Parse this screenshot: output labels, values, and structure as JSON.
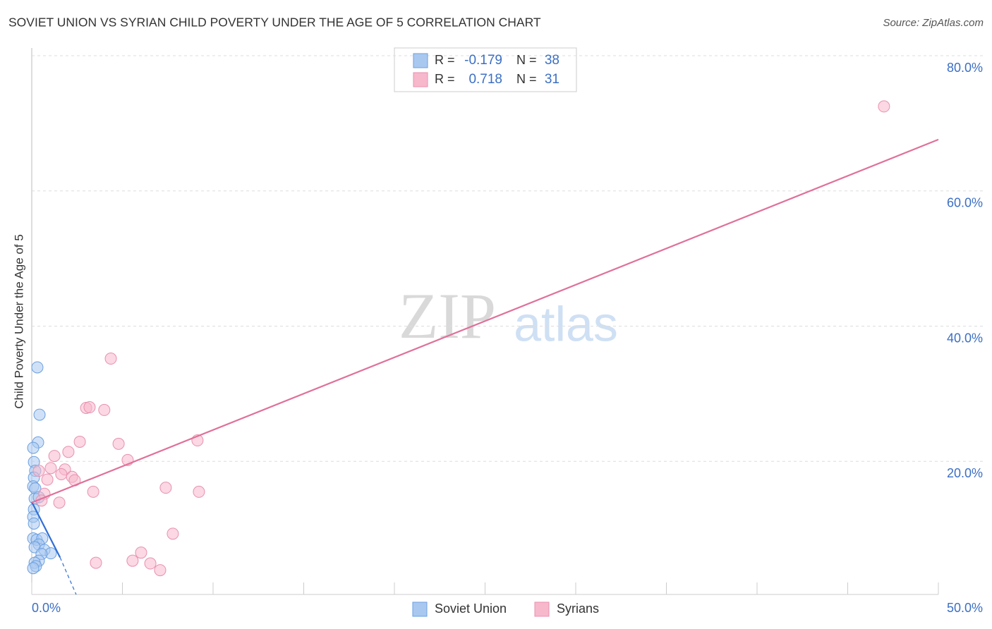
{
  "chart_data": {
    "type": "scatter",
    "title": "SOVIET UNION VS SYRIAN CHILD POVERTY UNDER THE AGE OF 5 CORRELATION CHART",
    "source": "Source: ZipAtlas.com",
    "watermark": [
      "ZIP",
      "atlas"
    ],
    "y_label": "Child Poverty Under the Age of 5",
    "xlim": [
      0,
      50
    ],
    "ylim": [
      0,
      80
    ],
    "xticks": [
      {
        "value": 0,
        "label": "0.0%"
      },
      {
        "value": 50,
        "label": "50.0%"
      }
    ],
    "x_tick_marks": [
      0,
      5,
      10,
      15,
      20,
      25,
      30,
      35,
      40,
      45,
      50
    ],
    "yticks": [
      {
        "value": 20,
        "label": "20.0%"
      },
      {
        "value": 40,
        "label": "40.0%"
      },
      {
        "value": 60,
        "label": "60.0%"
      },
      {
        "value": 80,
        "label": "80.0%"
      }
    ],
    "grid": true,
    "stat_labels": [
      "R =",
      "N ="
    ],
    "series": [
      {
        "name": "Soviet Union",
        "color": "#6a9fe0",
        "fill": "#a9c8f0",
        "line_color": "#2f6fd6",
        "r": -0.179,
        "n": 38,
        "x": [
          0.31,
          0.43,
          0.35,
          0.08,
          0.12,
          0.19,
          0.12,
          0.08,
          0.19,
          0.16,
          0.39,
          0.12,
          0.08,
          0.12,
          0.08,
          0.27,
          0.58,
          0.39,
          0.16,
          0.7,
          1.05,
          0.54,
          0.39,
          0.16,
          0.23,
          0.08
        ],
        "values": [
          33.9,
          26.9,
          22.8,
          22.0,
          19.9,
          18.6,
          17.6,
          16.3,
          16.0,
          14.5,
          14.7,
          12.9,
          11.8,
          10.8,
          8.6,
          8.4,
          8.6,
          7.7,
          7.3,
          6.9,
          6.4,
          6.3,
          5.3,
          5.0,
          4.5,
          4.2
        ],
        "trend": {
          "x": [
            0,
            1.56
          ],
          "y": [
            14.0,
            5.8
          ]
        },
        "trend_extension": {
          "x": [
            1.56,
            2.45
          ],
          "y": [
            5.8,
            0.3
          ]
        }
      },
      {
        "name": "Syrians",
        "color": "#e890ae",
        "fill": "#f7b8cc",
        "line_color": "#e0709a",
        "r": 0.718,
        "n": 31,
        "x": [
          47.0,
          4.36,
          3.0,
          3.19,
          4.0,
          2.65,
          4.79,
          9.14,
          2.02,
          1.25,
          5.29,
          1.05,
          1.83,
          0.39,
          1.63,
          2.22,
          0.86,
          2.37,
          7.39,
          9.22,
          3.39,
          0.7,
          0.54,
          1.52,
          7.78,
          6.03,
          5.56,
          3.54,
          6.54,
          7.08
        ],
        "values": [
          72.5,
          35.2,
          27.9,
          28.0,
          27.6,
          22.9,
          22.6,
          23.1,
          21.4,
          20.8,
          20.2,
          19.0,
          18.8,
          18.6,
          18.1,
          17.7,
          17.3,
          17.2,
          16.1,
          15.5,
          15.5,
          15.2,
          14.2,
          13.9,
          9.3,
          6.5,
          5.3,
          5.0,
          4.9,
          3.9
        ],
        "trend": {
          "x": [
            0,
            50
          ],
          "y": [
            13.9,
            67.6
          ]
        }
      }
    ]
  }
}
